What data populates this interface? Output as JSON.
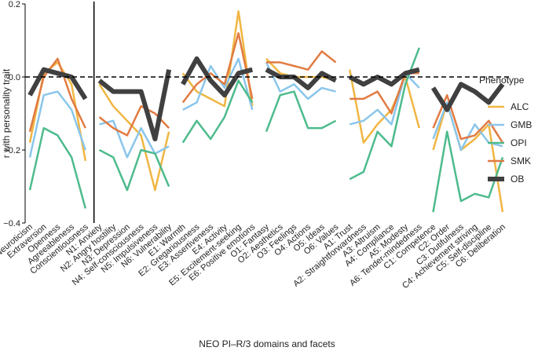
{
  "chart_data": {
    "type": "line",
    "xlabel": "NEO PI–R/3 domains and facets",
    "ylabel": "r with personality trait",
    "ylim": [
      -0.4,
      0.2
    ],
    "yticks": [
      "0.2",
      "0.0",
      "−0.2",
      "−0.4"
    ],
    "ytick_values": [
      0.2,
      0.0,
      -0.2,
      -0.4
    ],
    "reference_line": 0.0,
    "separator_after": "Conscientiousness",
    "legend_title": "Phenotype",
    "legend_position": "right",
    "categories": [
      "Neuroticism",
      "Extraversion",
      "Openness",
      "Agreeableness",
      "Conscientiousness",
      "N1: Anxiety",
      "N2: Angry hostility",
      "N3: Depression",
      "N4: Self-consciousness",
      "N5: Impulsiveness",
      "N6: Vulnerability",
      "E1: Warmth",
      "E2: Gregariousness",
      "E3: Assertiveness",
      "E4: Activity",
      "E5: Excitement-seeking",
      "E6: Positive emotions",
      "O1: Fantasy",
      "O2: Aesthetics",
      "O3: Feelings",
      "O4: Actions",
      "O5: Ideas",
      "O6: Values",
      "A1: Trust",
      "A2: Straightforwardness",
      "A3: Altruism",
      "A4: Compliance",
      "A5: Modesty",
      "A6: Tender-mindedness",
      "C1: Competence",
      "C2: Order",
      "C3: Dutifulness",
      "C4: Achievement striving",
      "C5: Self-discipline",
      "C6: Deliberation"
    ],
    "groups": [
      [
        0,
        4
      ],
      [
        5,
        10
      ],
      [
        11,
        16
      ],
      [
        17,
        22
      ],
      [
        23,
        28
      ],
      [
        29,
        34
      ]
    ],
    "series": [
      {
        "name": "ALC",
        "color": "#f0b642",
        "width": 2.5,
        "values": [
          -0.18,
          0.01,
          0.04,
          -0.02,
          -0.23,
          -0.02,
          -0.08,
          -0.12,
          -0.16,
          -0.31,
          -0.15,
          0.01,
          -0.04,
          -0.06,
          -0.08,
          0.18,
          -0.08,
          0.05,
          0.01,
          0.0,
          0.0,
          0.0,
          -0.01,
          0.02,
          -0.18,
          -0.13,
          -0.09,
          0.0,
          -0.14,
          -0.2,
          -0.07,
          -0.2,
          -0.17,
          -0.13,
          -0.37
        ]
      },
      {
        "name": "GMB",
        "color": "#8ac6eb",
        "width": 2.5,
        "values": [
          -0.22,
          -0.05,
          -0.04,
          -0.09,
          -0.2,
          -0.13,
          -0.12,
          -0.22,
          -0.14,
          -0.21,
          -0.19,
          -0.09,
          -0.07,
          0.03,
          -0.03,
          0.05,
          -0.09,
          0.04,
          -0.04,
          -0.02,
          -0.06,
          -0.03,
          -0.04,
          -0.13,
          -0.12,
          -0.09,
          -0.13,
          0.01,
          -0.03,
          -0.17,
          -0.07,
          -0.2,
          -0.13,
          -0.18,
          -0.19
        ]
      },
      {
        "name": "OPI",
        "color": "#4dbb8c",
        "width": 2.5,
        "values": [
          -0.31,
          -0.14,
          -0.16,
          -0.22,
          -0.36,
          -0.2,
          -0.22,
          -0.31,
          -0.2,
          -0.21,
          -0.3,
          -0.18,
          -0.12,
          -0.17,
          -0.11,
          -0.01,
          -0.07,
          -0.15,
          -0.05,
          -0.04,
          -0.14,
          -0.14,
          -0.12,
          -0.28,
          -0.26,
          -0.15,
          -0.19,
          -0.02,
          0.08,
          -0.37,
          -0.15,
          -0.34,
          -0.32,
          -0.33,
          -0.22
        ]
      },
      {
        "name": "SMK",
        "color": "#e17b42",
        "width": 2.5,
        "values": [
          -0.15,
          0.0,
          0.05,
          -0.06,
          -0.14,
          -0.11,
          -0.14,
          -0.16,
          -0.08,
          -0.1,
          -0.14,
          -0.07,
          -0.02,
          0.01,
          -0.02,
          0.12,
          -0.06,
          0.04,
          0.04,
          0.03,
          0.02,
          0.07,
          0.04,
          -0.06,
          -0.06,
          -0.04,
          -0.1,
          0.01,
          0.01,
          -0.14,
          -0.05,
          -0.17,
          -0.16,
          -0.12,
          -0.18
        ]
      },
      {
        "name": "OB",
        "color": "#404040",
        "width": 6,
        "values": [
          -0.05,
          0.02,
          0.01,
          0.0,
          -0.06,
          -0.01,
          -0.04,
          -0.04,
          -0.04,
          -0.17,
          0.02,
          -0.02,
          0.05,
          -0.01,
          -0.05,
          0.01,
          0.02,
          0.02,
          0.0,
          0.0,
          -0.03,
          0.01,
          -0.01,
          0.0,
          -0.02,
          0.0,
          -0.02,
          0.01,
          0.02,
          -0.03,
          -0.09,
          -0.02,
          -0.04,
          -0.07,
          -0.02
        ]
      }
    ]
  }
}
